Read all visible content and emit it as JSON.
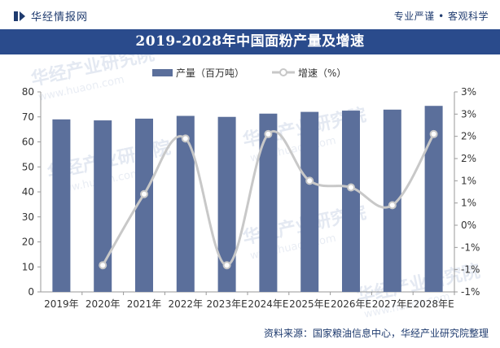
{
  "header": {
    "brand": "华经情报网",
    "slogan": "专业严谨 • 客观科学",
    "title": "2019-2028年中国面粉产量及增速"
  },
  "chart_data": {
    "type": "bar+line",
    "title": "2019-2028年中国面粉产量及增速",
    "categories": [
      "2019年",
      "2020年",
      "2021年",
      "2022年",
      "2023年E",
      "2024年E",
      "2025年E",
      "2026年E",
      "2027年E",
      "2028年E"
    ],
    "series": [
      {
        "name": "产量（百万吨）",
        "type": "bar",
        "axis": "left",
        "color": "#5b6f9b",
        "values": [
          69.0,
          68.6,
          69.3,
          70.4,
          70.0,
          71.3,
          72.0,
          72.5,
          72.9,
          74.4
        ]
      },
      {
        "name": "增速（%）",
        "type": "line",
        "axis": "right",
        "color": "#c8c8c8",
        "values": [
          null,
          -0.9,
          0.7,
          1.95,
          -0.9,
          2.05,
          1.0,
          0.85,
          0.45,
          2.05
        ]
      }
    ],
    "left_axis": {
      "min": 0,
      "max": 80,
      "ticks": [
        0,
        10,
        20,
        30,
        40,
        50,
        60,
        70,
        80
      ]
    },
    "right_axis": {
      "min": -1.5,
      "max": 3,
      "ticks": [
        -1.5,
        -1,
        -0.5,
        0,
        0.5,
        1,
        1.5,
        2,
        2.5,
        3
      ],
      "tick_labels": [
        "-1%",
        "-1%",
        "-1%",
        "0%",
        "1%",
        "1%",
        "2%",
        "2%",
        "3%",
        "3%"
      ]
    },
    "legend_position": "top-center",
    "watermark": "华经产业研究院 www.huaon.com"
  },
  "footer": {
    "source": "资料来源：国家粮油信息中心，华经产业研究院整理"
  },
  "colors": {
    "title_bar": "#2a4b8c",
    "bar": "#5b6f9b",
    "line": "#c8c8c8",
    "brand": "#1f3b6f"
  }
}
